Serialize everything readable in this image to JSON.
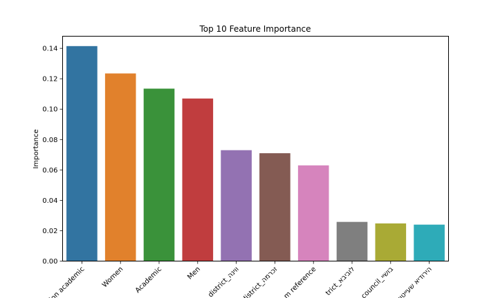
{
  "chart_data": {
    "type": "bar",
    "title": "Top 10 Feature Importance",
    "xlabel": "",
    "ylabel": "Importance",
    "categories": [
      "ion academic",
      "Women",
      "Academic",
      "Men",
      "district_ווינה",
      "district_זכרמה",
      "m reference",
      "trict_לוביבא",
      "council_בושיי",
      "הירודיא שעייטוי"
    ],
    "values": [
      0.1415,
      0.1235,
      0.1135,
      0.107,
      0.073,
      0.071,
      0.063,
      0.0258,
      0.0248,
      0.024
    ],
    "colors": [
      "#3274a1",
      "#e1812c",
      "#3a923a",
      "#c03d3e",
      "#9372b2",
      "#845b53",
      "#d684bd",
      "#7f7f7f",
      "#a9aa35",
      "#2eabb8"
    ],
    "ylim": [
      0,
      0.148
    ],
    "yticks": [
      "0.00",
      "0.02",
      "0.04",
      "0.06",
      "0.08",
      "0.10",
      "0.12",
      "0.14"
    ],
    "grid": false,
    "legend": "none"
  }
}
